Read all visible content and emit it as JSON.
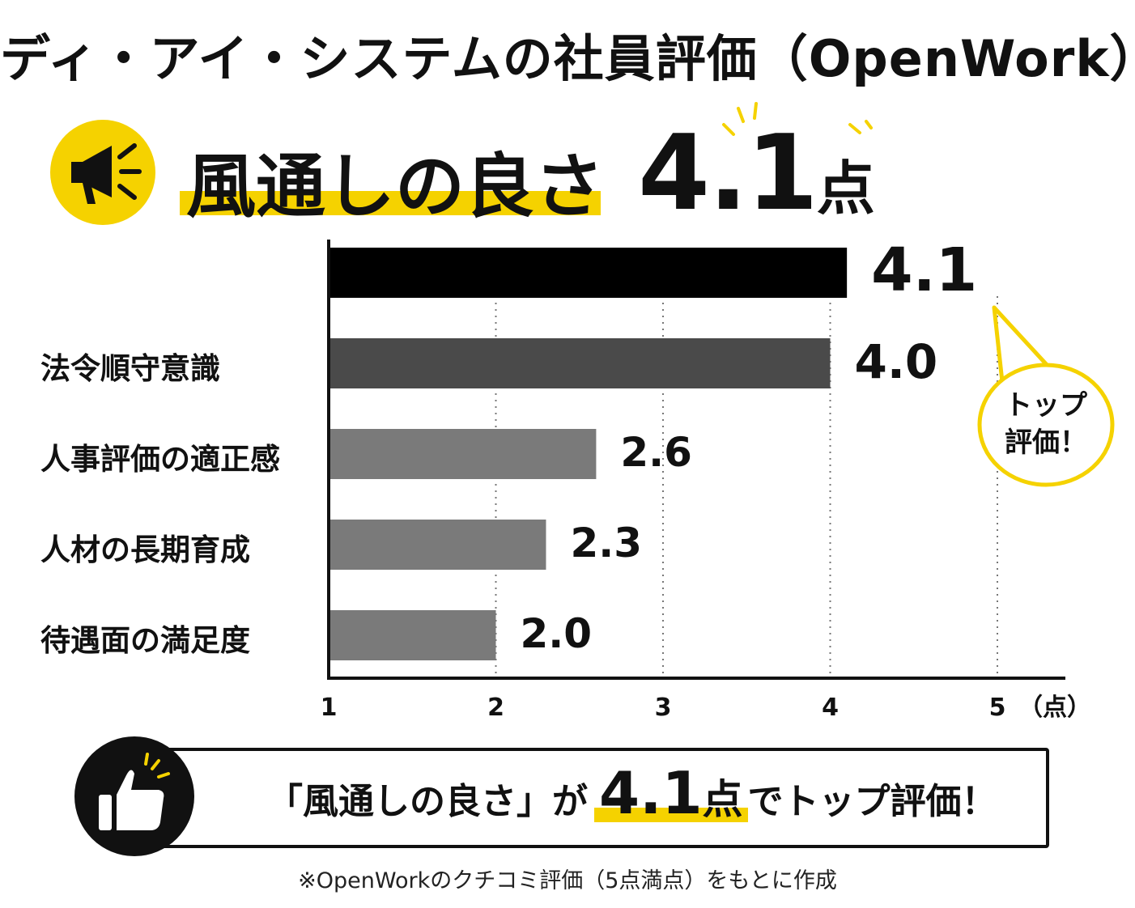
{
  "title": "ディ・アイ・システムの社員評価（OpenWork）",
  "headline": {
    "label": "風通しの良さ",
    "score": "4.1",
    "unit": "点"
  },
  "callout": {
    "line1": "トップ",
    "line2": "評価！"
  },
  "bottom_banner": {
    "quote": "「風通しの良さ」が",
    "score": "4.1",
    "score_unit": "点",
    "tail": "でトップ評価！"
  },
  "footnote": "※OpenWorkのクチコミ評価（5点満点）をもとに作成",
  "colors": {
    "accent_yellow": "#f5d200",
    "top_bar": "#000000",
    "second_bar": "#4a4a4a",
    "other_bars": "#7a7a7a"
  },
  "chart_data": {
    "type": "bar",
    "orientation": "horizontal",
    "categories": [
      "",
      "法令順守意識",
      "人事評価の適正感",
      "人材の長期育成",
      "待遇面の満足度"
    ],
    "values": [
      4.1,
      4.0,
      2.6,
      2.3,
      2.0
    ],
    "value_labels": [
      "4.1",
      "4.0",
      "2.6",
      "2.3",
      "2.0"
    ],
    "xticks": [
      "1",
      "2",
      "3",
      "4",
      "5"
    ],
    "xunit": "（点）",
    "xlim": [
      1,
      5
    ],
    "grid": "vertical dotted"
  }
}
